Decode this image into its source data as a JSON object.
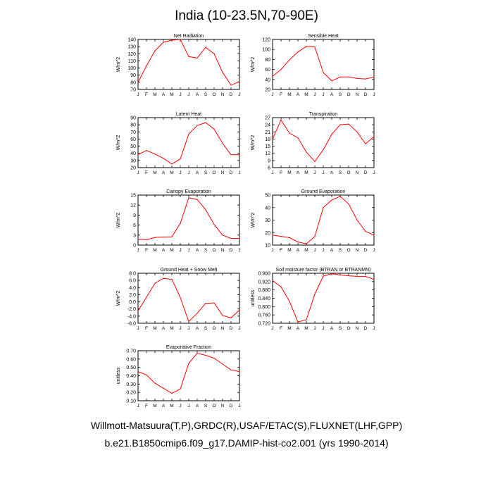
{
  "title": "India (10-23.5N,70-90E)",
  "footer_line1": "Willmott-Matsuura(T,P),GRDC(R),USAF/ETAC(S),FLUXNET(LHF,GPP)",
  "footer_line2": "b.e21.B1850cmip6.f09_g17.DAMIP-hist-co2.001 (yrs 1990-2014)",
  "line_color": "#ff0000",
  "chart_data": [
    {
      "type": "line",
      "title": "Net Radiation",
      "ylabel": "W/m^2",
      "categories": [
        "J",
        "F",
        "M",
        "A",
        "M",
        "J",
        "J",
        "A",
        "S",
        "O",
        "N",
        "D",
        "J"
      ],
      "ylim": [
        70,
        140
      ],
      "yticks": [
        70,
        80,
        90,
        100,
        110,
        120,
        130,
        140
      ],
      "ytick_labels": [
        "70",
        "80",
        "90",
        "100",
        "110",
        "120",
        "130",
        "140"
      ],
      "values": [
        80,
        103,
        124,
        136,
        139,
        140,
        116,
        114,
        129,
        120,
        94,
        76,
        81
      ]
    },
    {
      "type": "line",
      "title": "Sensible Heat",
      "ylabel": "W/m^2",
      "categories": [
        "J",
        "F",
        "M",
        "A",
        "M",
        "J",
        "J",
        "A",
        "S",
        "O",
        "N",
        "D",
        "J"
      ],
      "ylim": [
        20,
        120
      ],
      "yticks": [
        20,
        40,
        60,
        80,
        100,
        120
      ],
      "ytick_labels": [
        "20",
        "40",
        "60",
        "80",
        "100",
        "120"
      ],
      "values": [
        46,
        60,
        79,
        95,
        106,
        105,
        54,
        37,
        45,
        45,
        42,
        41,
        45
      ]
    },
    {
      "type": "line",
      "title": "Latent Heat",
      "ylabel": "W/m^2",
      "categories": [
        "J",
        "F",
        "M",
        "A",
        "M",
        "J",
        "J",
        "A",
        "S",
        "O",
        "N",
        "D",
        "J"
      ],
      "ylim": [
        20,
        90
      ],
      "yticks": [
        20,
        30,
        40,
        50,
        60,
        70,
        80,
        90
      ],
      "ytick_labels": [
        "20",
        "30",
        "40",
        "50",
        "60",
        "70",
        "80",
        "90"
      ],
      "values": [
        38,
        44,
        39,
        33,
        25,
        32,
        67,
        79,
        83,
        74,
        54,
        38,
        38
      ]
    },
    {
      "type": "line",
      "title": "Transpiration",
      "ylabel": "W/m^2",
      "categories": [
        "J",
        "F",
        "M",
        "A",
        "M",
        "J",
        "J",
        "A",
        "S",
        "O",
        "N",
        "D",
        "J"
      ],
      "ylim": [
        6,
        27
      ],
      "yticks": [
        6,
        9,
        12,
        15,
        18,
        21,
        24,
        27
      ],
      "ytick_labels": [
        "6",
        "9",
        "12",
        "15",
        "18",
        "21",
        "24",
        "27"
      ],
      "values": [
        18,
        26,
        20.5,
        18.5,
        12.5,
        8.5,
        13.5,
        20,
        24,
        24.3,
        21,
        16,
        19
      ]
    },
    {
      "type": "line",
      "title": "Canopy Evaporation",
      "ylabel": "W/m^2",
      "categories": [
        "J",
        "F",
        "M",
        "A",
        "M",
        "J",
        "J",
        "A",
        "S",
        "O",
        "N",
        "D",
        "J"
      ],
      "ylim": [
        0,
        15
      ],
      "yticks": [
        0,
        3,
        6,
        9,
        12,
        15
      ],
      "ytick_labels": [
        "0",
        "3",
        "6",
        "9",
        "12",
        "15"
      ],
      "values": [
        1.8,
        1.6,
        2.3,
        2.4,
        2.5,
        6.5,
        14.2,
        13.7,
        10.6,
        6.2,
        3.0,
        2.0,
        2.0
      ]
    },
    {
      "type": "line",
      "title": "Ground Evaporation",
      "ylabel": "W/m^2",
      "categories": [
        "J",
        "F",
        "M",
        "A",
        "M",
        "J",
        "J",
        "A",
        "S",
        "O",
        "N",
        "D",
        "J"
      ],
      "ylim": [
        10,
        50
      ],
      "yticks": [
        10,
        20,
        30,
        40,
        50
      ],
      "ytick_labels": [
        "10",
        "20",
        "30",
        "40",
        "50"
      ],
      "values": [
        18,
        17,
        16,
        12.5,
        11,
        17,
        40,
        46,
        49,
        43,
        30,
        21,
        18
      ]
    },
    {
      "type": "line",
      "title": "Ground Heat + Snow Melt",
      "ylabel": "W/m^2",
      "categories": [
        "J",
        "F",
        "M",
        "A",
        "M",
        "J",
        "J",
        "A",
        "S",
        "O",
        "N",
        "D",
        "J"
      ],
      "ylim": [
        -6,
        8
      ],
      "yticks": [
        -6,
        -4,
        -2,
        0,
        2,
        4,
        6,
        8
      ],
      "ytick_labels": [
        "-6.0",
        "-4.0",
        "-2.0",
        "0.0",
        "2.0",
        "4.0",
        "6.0",
        "8.0"
      ],
      "values": [
        -2.5,
        1.3,
        5.2,
        6.6,
        6.3,
        1.2,
        -5.5,
        -3.2,
        -0.4,
        -0.3,
        -3.8,
        -4.5,
        -2.3
      ]
    },
    {
      "type": "line",
      "title": "Soil moisture factor (BTRAN or BTRANMN)",
      "ylabel": "unitless",
      "categories": [
        "J",
        "F",
        "M",
        "A",
        "M",
        "J",
        "J",
        "A",
        "S",
        "O",
        "N",
        "D",
        "J"
      ],
      "ylim": [
        0.72,
        0.96
      ],
      "yticks": [
        0.72,
        0.76,
        0.8,
        0.84,
        0.88,
        0.92,
        0.96
      ],
      "ytick_labels": [
        "0.720",
        "0.760",
        "0.800",
        "0.840",
        "0.880",
        "0.920",
        "0.960"
      ],
      "values": [
        0.925,
        0.895,
        0.825,
        0.726,
        0.737,
        0.86,
        0.946,
        0.958,
        0.952,
        0.948,
        0.945,
        0.945,
        0.93
      ]
    },
    {
      "type": "line",
      "title": "Evaporative Fraction",
      "ylabel": "unitless",
      "categories": [
        "J",
        "F",
        "M",
        "A",
        "M",
        "J",
        "J",
        "A",
        "S",
        "O",
        "N",
        "D",
        "J"
      ],
      "ylim": [
        0.1,
        0.7
      ],
      "yticks": [
        0.1,
        0.2,
        0.3,
        0.4,
        0.5,
        0.6,
        0.7
      ],
      "ytick_labels": [
        "0.10",
        "0.20",
        "0.30",
        "0.40",
        "0.50",
        "0.60",
        "0.70"
      ],
      "values": [
        0.45,
        0.41,
        0.31,
        0.25,
        0.19,
        0.24,
        0.55,
        0.67,
        0.645,
        0.61,
        0.54,
        0.47,
        0.45
      ]
    }
  ]
}
